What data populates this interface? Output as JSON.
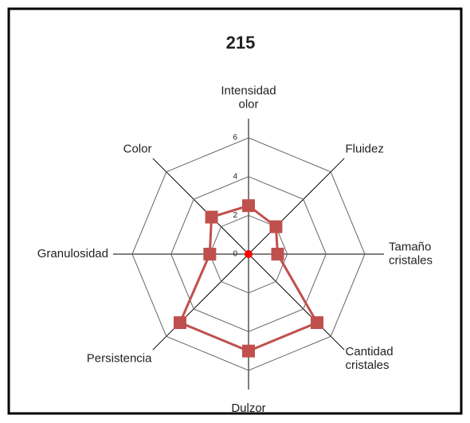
{
  "chart_data": {
    "type": "radar",
    "title": "215",
    "categories": [
      [
        "Intensidad",
        "olor"
      ],
      [
        "Fluidez"
      ],
      [
        "Tamaño",
        "cristales"
      ],
      [
        "Cantidad",
        "cristales"
      ],
      [
        "Dulzor"
      ],
      [
        "Persistencia"
      ],
      [
        "Granulosidad"
      ],
      [
        "Color"
      ]
    ],
    "series": [
      {
        "name": "215",
        "color": "#c0504d",
        "values": [
          2.5,
          2,
          1.5,
          5,
          5,
          5,
          2,
          2.7
        ]
      }
    ],
    "ylim": [
      0,
      6
    ],
    "yticks": [
      0,
      2,
      4,
      6
    ],
    "grid": true
  }
}
